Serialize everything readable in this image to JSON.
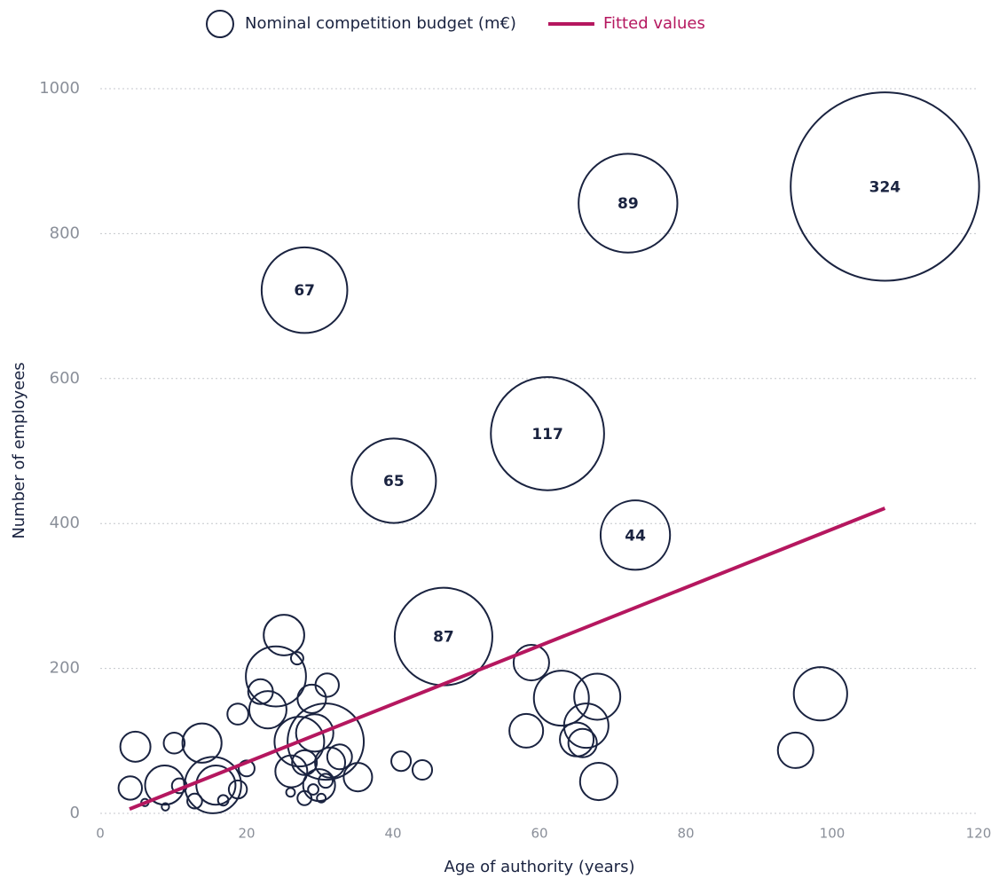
{
  "chart_data": {
    "type": "bubble",
    "xlabel": "Age of authority (years)",
    "ylabel": "Number of employees",
    "xlim": [
      0,
      120
    ],
    "xticks": [
      0,
      20,
      40,
      60,
      80,
      100,
      120
    ],
    "ylim": [
      0,
      1000
    ],
    "yticks": [
      0,
      200,
      400,
      600,
      800,
      1000
    ],
    "grid": true,
    "legend": "top",
    "series": [
      {
        "name": "Nominal competition budget (m€)",
        "type": "bubble",
        "color": "#1a2340",
        "x": [
          107.2,
          72.1,
          27.9,
          61.1,
          40.1,
          73.1,
          46.9,
          4.8,
          4.1,
          8.8,
          10.1,
          13.9,
          10.8,
          6.1,
          8.9,
          12.9,
          15.4,
          15.8,
          16.8,
          18.8,
          20,
          18.8,
          21.9,
          22.9,
          24,
          25.1,
          26.9,
          28.9,
          31,
          27.2,
          29.3,
          30.8,
          26.1,
          27.9,
          29.9,
          32.7,
          35.2,
          31.4,
          27.9,
          29.1,
          30.2,
          30.8,
          26,
          41.1,
          44,
          58.9,
          58.2,
          63,
          67.9,
          66.4,
          65.1,
          65.9,
          68.1,
          95,
          98.4
        ],
        "values": [
          865,
          842,
          722,
          524,
          459,
          384,
          244,
          92,
          35,
          39,
          97,
          97,
          38,
          15,
          9,
          17,
          39,
          39,
          18,
          33,
          62,
          137,
          168,
          143,
          189,
          246,
          214,
          158,
          177,
          99,
          111,
          99,
          58,
          70,
          39,
          78,
          50,
          70,
          21,
          33,
          21,
          45,
          29,
          72,
          60,
          208,
          114,
          159,
          161,
          121,
          102,
          97,
          44,
          87,
          165
        ],
        "sizes": [
          324,
          89,
          67,
          117,
          65,
          44,
          87,
          8.3,
          5,
          14,
          4,
          14,
          2,
          0.5,
          0.5,
          2,
          29,
          14,
          1,
          3,
          2.3,
          4,
          5.6,
          12.7,
          33,
          15,
          1.4,
          7.4,
          5,
          22.5,
          12.7,
          53,
          9.3,
          5.6,
          9.3,
          5.6,
          7.4,
          8.3,
          1.8,
          1,
          0.7,
          1.8,
          0.7,
          3.5,
          3.5,
          11.5,
          10.4,
          27.6,
          19.4,
          18,
          10.4,
          7.4,
          12.7,
          11.5,
          26
        ],
        "value_labels": [
          "324",
          "89",
          "67",
          "117",
          "65",
          "44",
          "87",
          null,
          null,
          null,
          null,
          null,
          null,
          null,
          null,
          null,
          null,
          null,
          null,
          null,
          null,
          null,
          null,
          null,
          null,
          null,
          null,
          null,
          null,
          null,
          null,
          null,
          null,
          null,
          null,
          null,
          null,
          null,
          null,
          null,
          null,
          null,
          null,
          null,
          null,
          null,
          null,
          null,
          null,
          null,
          null,
          null,
          null,
          null,
          null
        ]
      },
      {
        "name": "Fitted values",
        "type": "line",
        "color": "#b5175f",
        "x": [
          4,
          107.2
        ],
        "values": [
          6,
          421
        ]
      }
    ]
  }
}
